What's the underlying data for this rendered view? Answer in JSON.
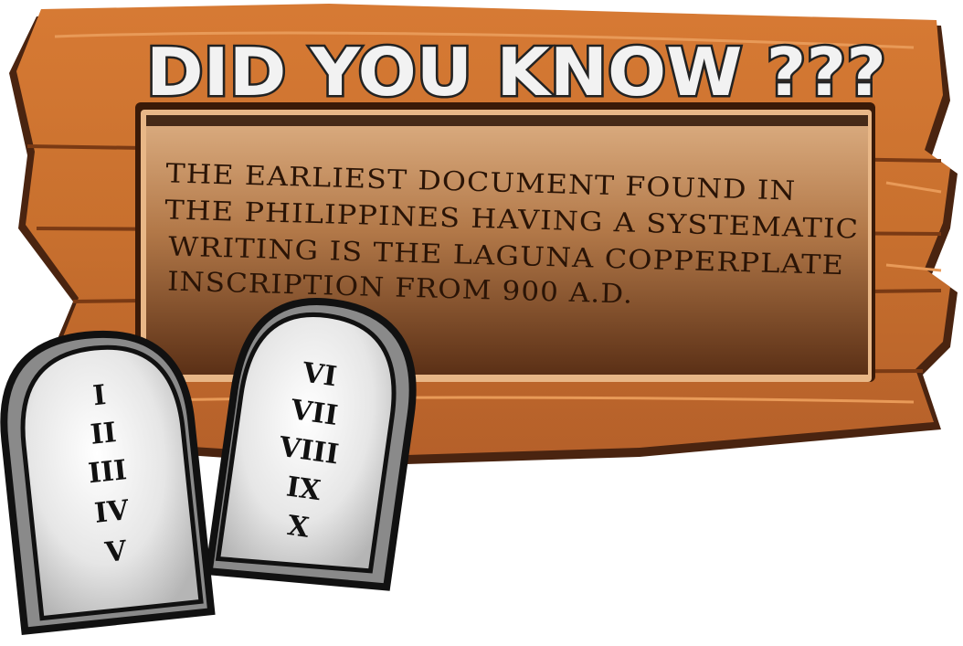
{
  "sign": {
    "title": "DID YOU KNOW ???",
    "fact_lines": [
      "THE EARLIEST DOCUMENT FOUND IN",
      "THE PHILIPPINES HAVING A SYSTEMATIC",
      "WRITING IS THE LAGUNA COPPERPLATE",
      "INSCRIPTION FROM 900 A.D."
    ],
    "colors": {
      "wood": "#c8702e",
      "wood_dark": "#5a2e12",
      "panel_top": "#d9a878",
      "panel_bottom": "#5b3016",
      "title_fill": "#f2f2f2",
      "title_outline": "#222222",
      "fact_text": "#2a1406"
    }
  },
  "tablets": {
    "left": {
      "numerals": [
        "I",
        "II",
        "III",
        "IV",
        "V"
      ]
    },
    "right": {
      "numerals": [
        "VI",
        "VII",
        "VIII",
        "IX",
        "X"
      ]
    },
    "colors": {
      "stone": "#e9e9e9",
      "stone_shade": "#a9a9a9",
      "outline": "#111111"
    }
  }
}
